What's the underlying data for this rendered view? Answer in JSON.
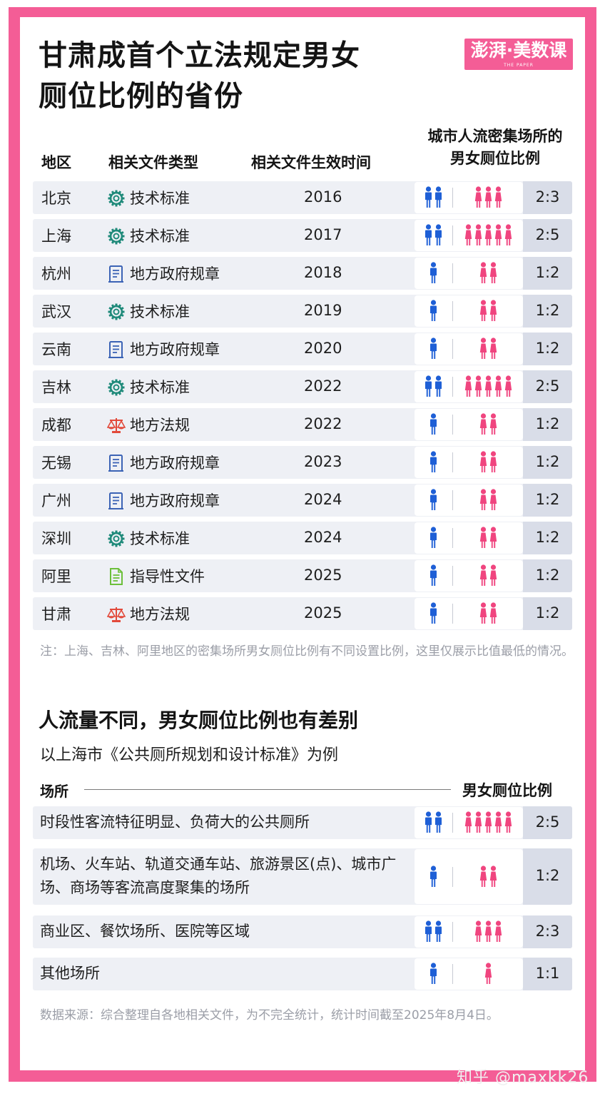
{
  "title_line1": "甘肃成首个立法规定男女",
  "title_line2": "厕位比例的省份",
  "logo": {
    "brand": "澎湃·美数课",
    "sub": "THE PAPER"
  },
  "table_header": {
    "region": "地区",
    "type": "相关文件类型",
    "date": "相关文件生效时间",
    "ratio_line1": "城市人流密集场所的",
    "ratio_line2": "男女厕位比例"
  },
  "rows": [
    {
      "region": "北京",
      "type": "技术标准",
      "icon": "gear-icon",
      "year": "2016",
      "men": 2,
      "women": 3,
      "ratio": "2:3"
    },
    {
      "region": "上海",
      "type": "技术标准",
      "icon": "gear-icon",
      "year": "2017",
      "men": 2,
      "women": 5,
      "ratio": "2:5"
    },
    {
      "region": "杭州",
      "type": "地方政府规章",
      "icon": "document-icon",
      "year": "2018",
      "men": 1,
      "women": 2,
      "ratio": "1:2"
    },
    {
      "region": "武汉",
      "type": "技术标准",
      "icon": "gear-icon",
      "year": "2019",
      "men": 1,
      "women": 2,
      "ratio": "1:2"
    },
    {
      "region": "云南",
      "type": "地方政府规章",
      "icon": "document-icon",
      "year": "2020",
      "men": 1,
      "women": 2,
      "ratio": "1:2"
    },
    {
      "region": "吉林",
      "type": "技术标准",
      "icon": "gear-icon",
      "year": "2022",
      "men": 2,
      "women": 5,
      "ratio": "2:5"
    },
    {
      "region": "成都",
      "type": "地方法规",
      "icon": "scales-icon",
      "year": "2022",
      "men": 1,
      "women": 2,
      "ratio": "1:2"
    },
    {
      "region": "无锡",
      "type": "地方政府规章",
      "icon": "document-icon",
      "year": "2023",
      "men": 1,
      "women": 2,
      "ratio": "1:2"
    },
    {
      "region": "广州",
      "type": "地方政府规章",
      "icon": "document-icon",
      "year": "2024",
      "men": 1,
      "women": 2,
      "ratio": "1:2"
    },
    {
      "region": "深圳",
      "type": "技术标准",
      "icon": "gear-icon",
      "year": "2024",
      "men": 1,
      "women": 2,
      "ratio": "1:2"
    },
    {
      "region": "阿里",
      "type": "指导性文件",
      "icon": "guide-document-icon",
      "year": "2025",
      "men": 1,
      "women": 2,
      "ratio": "1:2"
    },
    {
      "region": "甘肃",
      "type": "地方法规",
      "icon": "scales-icon",
      "year": "2025",
      "men": 1,
      "women": 2,
      "ratio": "1:2"
    }
  ],
  "note": "注：上海、吉林、阿里地区的密集场所男女厕位比例有不同设置比例，这里仅展示比值最低的情况。",
  "section2_title": "人流量不同，男女厕位比例也有差别",
  "section2_subtitle": "以上海市《公共厕所规划和设计标准》为例",
  "table2_header": {
    "place": "场所",
    "ratio": "男女厕位比例"
  },
  "rows2": [
    {
      "place": "时段性客流特征明显、负荷大的公共厕所",
      "men": 2,
      "women": 5,
      "ratio": "2:5"
    },
    {
      "place": "机场、火车站、轨道交通车站、旅游景区(点)、城市广场、商场等客流高度聚集的场所",
      "men": 1,
      "women": 2,
      "ratio": "1:2"
    },
    {
      "place": "商业区、餐饮场所、医院等区域",
      "men": 2,
      "women": 3,
      "ratio": "2:3"
    },
    {
      "place": "其他场所",
      "men": 1,
      "women": 1,
      "ratio": "1:1"
    }
  ],
  "source": "数据来源：综合整理自各地相关文件，为不完全统计，统计时间截至2025年8月4日。",
  "watermark": "知乎 @maxkk26",
  "colors": {
    "frame": "#f45d96",
    "men": "#1e5fd6",
    "women": "#f0457f",
    "row_bg": "#eef0f5",
    "ratio_bg": "#d9dde8",
    "gear": "#1f8a7a",
    "document": "#3b63b5",
    "scales": "#e24a3b",
    "guide": "#6cbf3a"
  }
}
